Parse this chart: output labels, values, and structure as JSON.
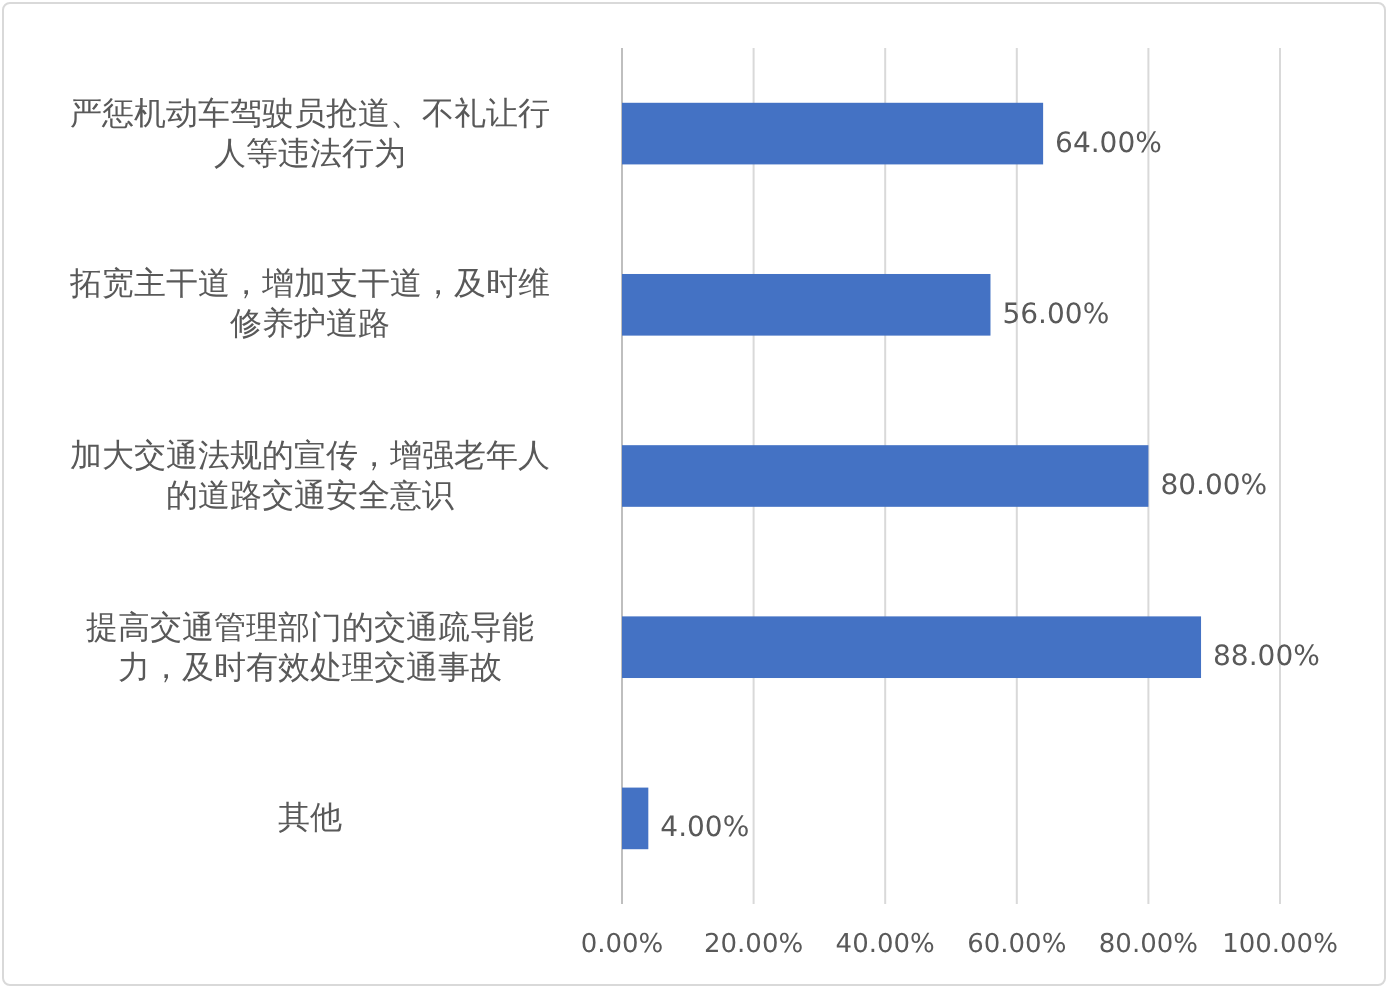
{
  "chart_data": {
    "type": "bar",
    "orientation": "horizontal",
    "categories": [
      "严惩机动车驾驶员抢道、不礼让行人等违法行为",
      "拓宽主干道，增加支干道，及时维修养护道路",
      "加大交通法规的宣传，增强老年人的道路交通安全意识",
      "提高交通管理部门的交通疏导能力，及时有效处理交通事故",
      "其他"
    ],
    "values": [
      64,
      56,
      80,
      88,
      4
    ],
    "value_labels": [
      "64.00%",
      "56.00%",
      "80.00%",
      "88.00%",
      "4.00%"
    ],
    "color": "#4472c4",
    "xlim": [
      0,
      100
    ],
    "xticks": [
      {
        "value": 0,
        "label": "0.00%"
      },
      {
        "value": 20,
        "label": "20.00%"
      },
      {
        "value": 40,
        "label": "40.00%"
      },
      {
        "value": 60,
        "label": "60.00%"
      },
      {
        "value": 80,
        "label": "80.00%"
      },
      {
        "value": 100,
        "label": "100.00%"
      }
    ],
    "grid": "x"
  }
}
